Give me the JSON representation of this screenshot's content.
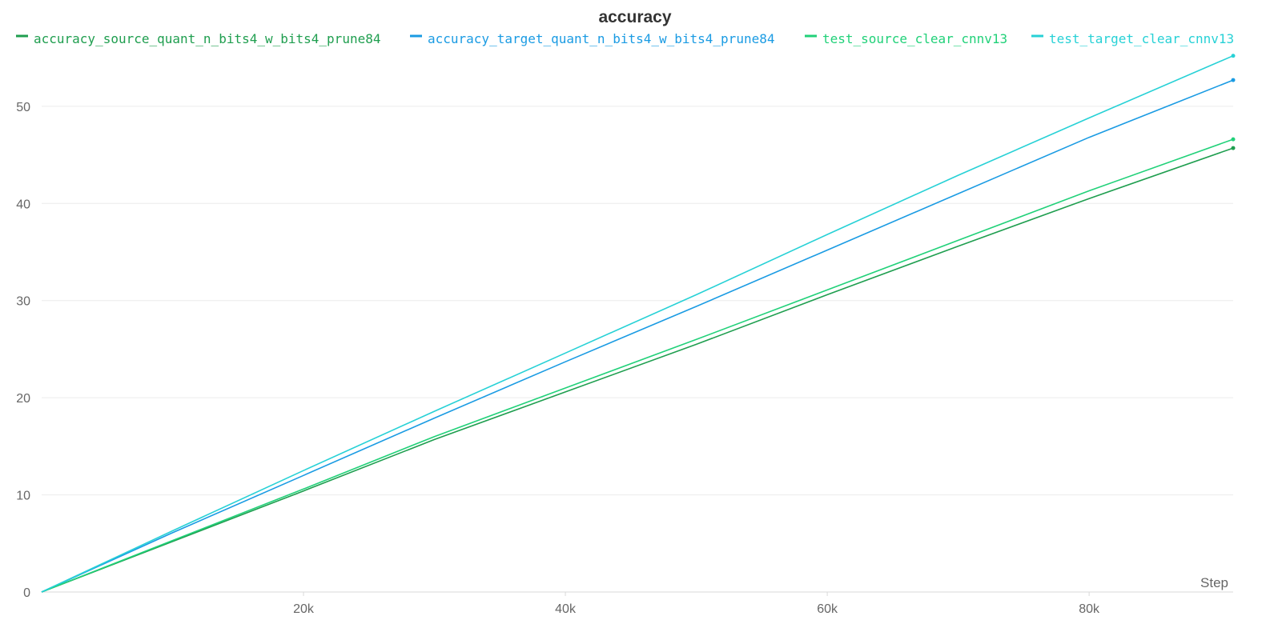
{
  "chart_data": {
    "type": "line",
    "title": "accuracy",
    "xlabel": "Step",
    "ylabel": "",
    "xlim": [
      0,
      91000
    ],
    "ylim": [
      0,
      56
    ],
    "x_ticks": [
      20000,
      40000,
      60000,
      80000
    ],
    "x_tick_labels": [
      "20k",
      "40k",
      "60k",
      "80k"
    ],
    "y_ticks": [
      0,
      10,
      20,
      30,
      40,
      50
    ],
    "y_tick_labels": [
      "0",
      "10",
      "20",
      "30",
      "40",
      "50"
    ],
    "grid": "horizontal",
    "legend_position": "top",
    "x": [
      0,
      10000,
      20000,
      30000,
      40000,
      50000,
      60000,
      70000,
      80000,
      91000
    ],
    "series": [
      {
        "name": "accuracy_source_quant_n_bits4_w_bits4_prune84",
        "color": "#1f9e4f",
        "values": [
          0,
          5.2,
          10.4,
          15.7,
          20.6,
          25.5,
          30.6,
          35.6,
          40.5,
          45.7
        ]
      },
      {
        "name": "accuracy_target_quant_n_bits4_w_bits4_prune84",
        "color": "#1a9be3",
        "values": [
          0,
          6.1,
          12.0,
          17.9,
          23.7,
          29.4,
          35.2,
          41.0,
          46.8,
          52.7
        ]
      },
      {
        "name": "test_source_clear_cnnv13",
        "color": "#21d179",
        "values": [
          0,
          5.3,
          10.6,
          16.0,
          21.0,
          26.0,
          31.1,
          36.2,
          41.3,
          46.6
        ]
      },
      {
        "name": "test_target_clear_cnnv13",
        "color": "#27d1d6",
        "values": [
          0,
          6.3,
          12.5,
          18.6,
          24.6,
          30.6,
          36.8,
          42.9,
          48.8,
          55.2
        ]
      }
    ]
  }
}
